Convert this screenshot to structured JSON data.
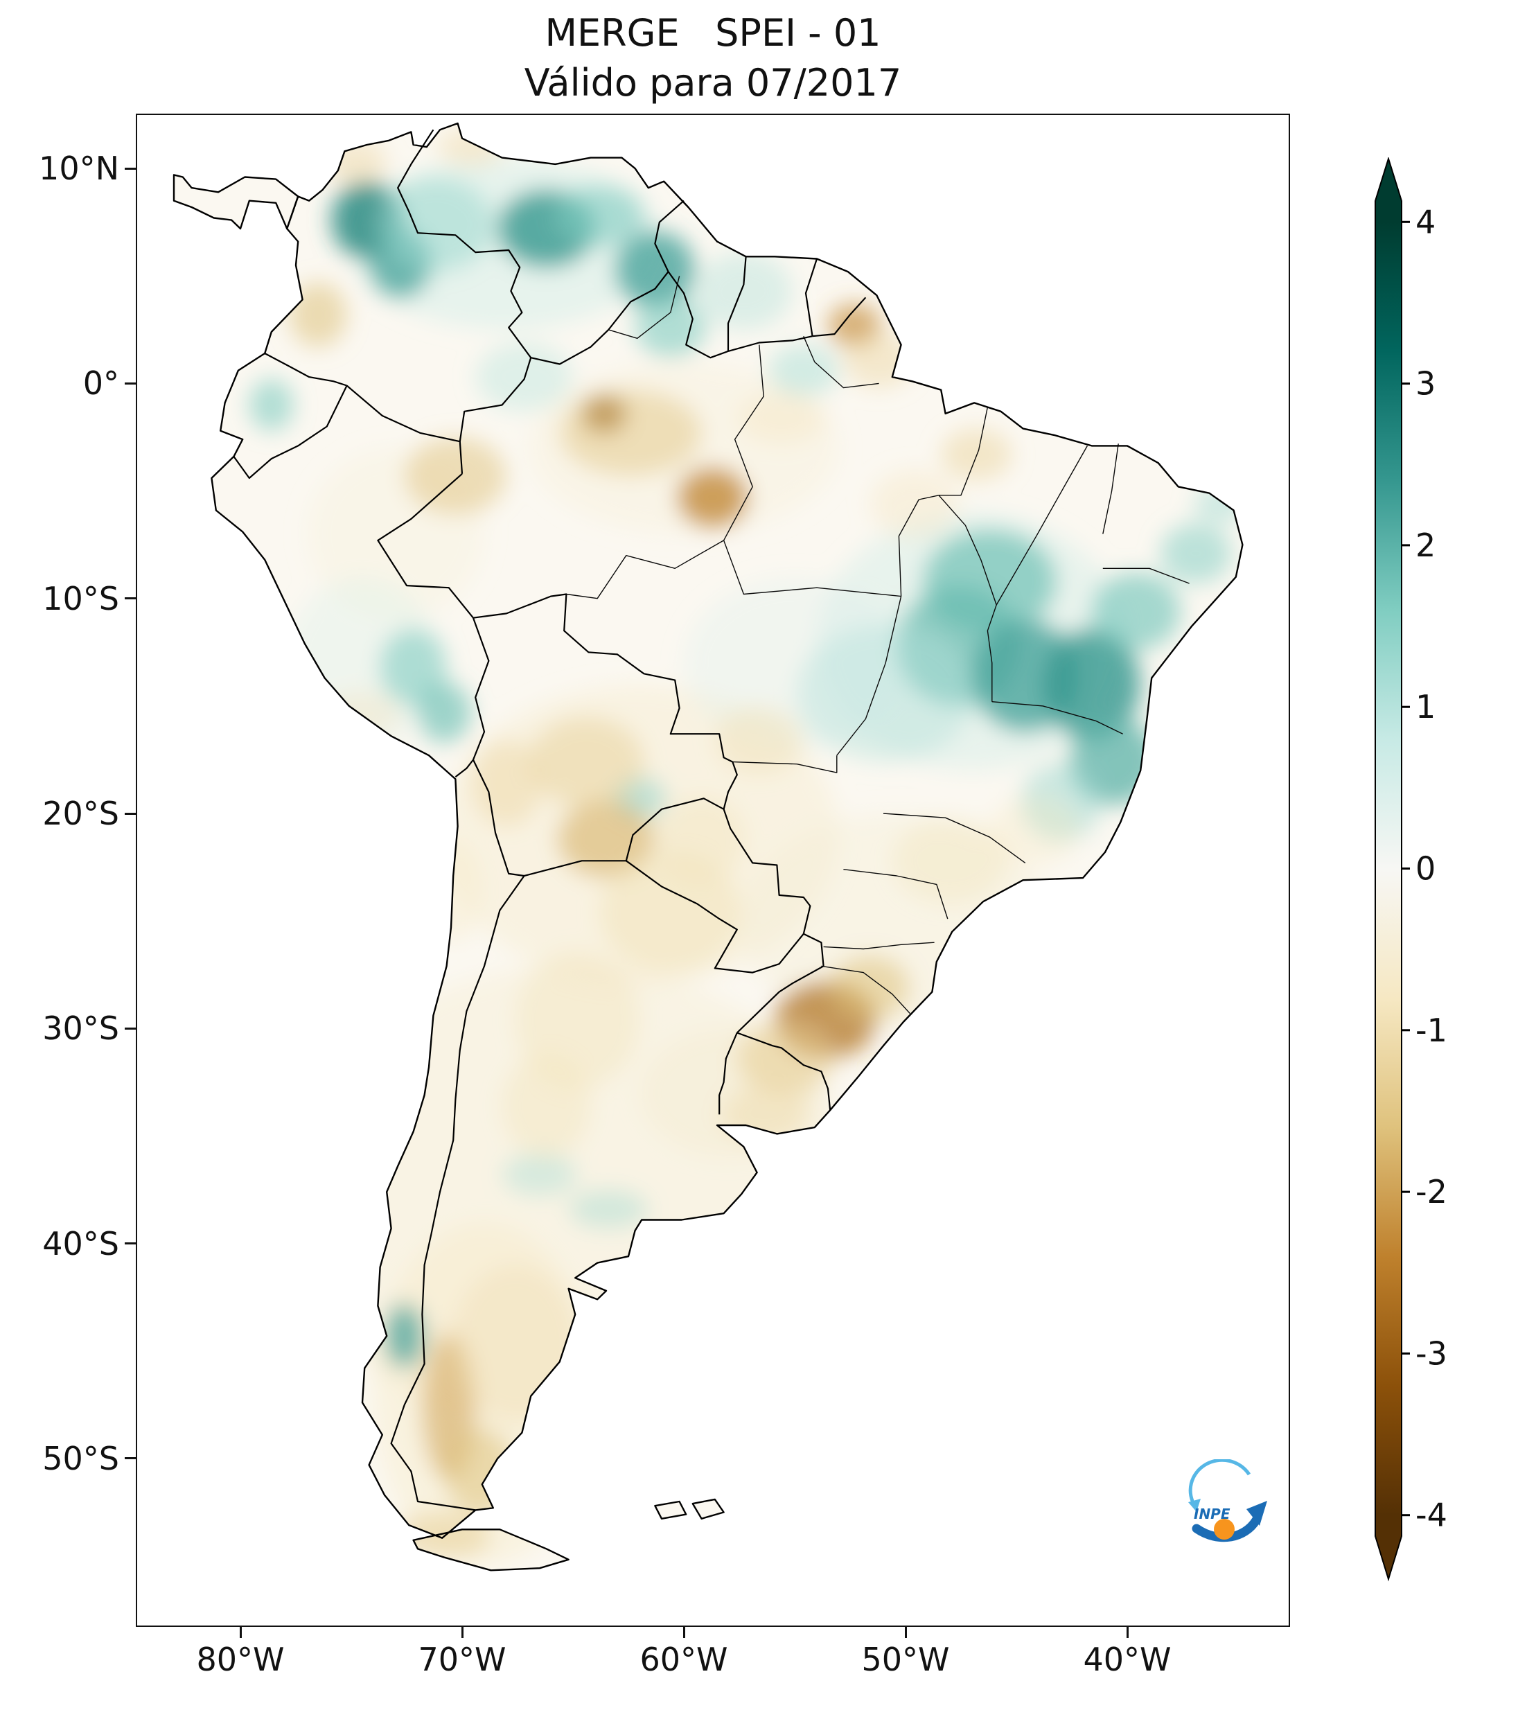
{
  "title": "MERGE   SPEI - 01",
  "subtitle": "Válido para 07/2017",
  "axes": {
    "lat_ticks": [
      {
        "label": "10°N",
        "value": 10
      },
      {
        "label": "0°",
        "value": 0
      },
      {
        "label": "10°S",
        "value": -10
      },
      {
        "label": "20°S",
        "value": -20
      },
      {
        "label": "30°S",
        "value": -30
      },
      {
        "label": "40°S",
        "value": -40
      },
      {
        "label": "50°S",
        "value": -50
      }
    ],
    "lon_ticks": [
      {
        "label": "80°W",
        "value": -80
      },
      {
        "label": "70°W",
        "value": -70
      },
      {
        "label": "60°W",
        "value": -60
      },
      {
        "label": "50°W",
        "value": -50
      },
      {
        "label": "40°W",
        "value": -40
      }
    ]
  },
  "colorbar": {
    "ticks": [
      4,
      3,
      2,
      1,
      0,
      -1,
      -2,
      -3,
      -4
    ],
    "vmin": -4,
    "vmax": 4,
    "extend": "both",
    "stops": [
      {
        "v": -4.0,
        "c": "#543005"
      },
      {
        "v": -3.2,
        "c": "#8c510a"
      },
      {
        "v": -2.4,
        "c": "#bf812d"
      },
      {
        "v": -1.6,
        "c": "#dfc27d"
      },
      {
        "v": -0.8,
        "c": "#f6e8c3"
      },
      {
        "v": 0.0,
        "c": "#f7f7f4"
      },
      {
        "v": 0.8,
        "c": "#c7eae5"
      },
      {
        "v": 1.6,
        "c": "#80cdc1"
      },
      {
        "v": 2.4,
        "c": "#35978f"
      },
      {
        "v": 3.2,
        "c": "#01665e"
      },
      {
        "v": 4.0,
        "c": "#003c30"
      }
    ]
  },
  "logo": {
    "text": "INPE"
  },
  "chart_data": {
    "type": "heatmap",
    "title": "MERGE   SPEI - 01",
    "subtitle": "Válido para 07/2017",
    "variable": "SPEI-01",
    "valid_for": "07/2017",
    "extent": {
      "lon_min": -84.7,
      "lon_max": -32.7,
      "lat_min": -57.8,
      "lat_max": 12.55
    },
    "value_range": [
      -4,
      4
    ],
    "region_format": [
      "lon",
      "lat",
      "rx_deg",
      "ry_deg",
      "spei",
      "opacity"
    ],
    "anomaly_regions": [
      [
        -65.0,
        -38.0,
        13.0,
        11.0,
        -0.5,
        0.45
      ],
      [
        -62.0,
        -21.0,
        9.0,
        7.0,
        -0.6,
        0.45
      ],
      [
        -50.5,
        -25.0,
        7.0,
        5.0,
        -0.5,
        0.4
      ],
      [
        -69.0,
        -47.0,
        5.0,
        8.0,
        -0.7,
        0.45
      ],
      [
        -60.0,
        -3.0,
        7.0,
        4.0,
        -0.5,
        0.35
      ],
      [
        -73.0,
        -7.0,
        4.0,
        4.0,
        -0.5,
        0.3
      ],
      [
        -58.0,
        -33.0,
        4.0,
        3.0,
        -0.6,
        0.4
      ],
      [
        -47.0,
        -12.0,
        7.0,
        6.0,
        0.7,
        0.4
      ],
      [
        -55.0,
        -13.0,
        5.0,
        4.0,
        0.5,
        0.3
      ],
      [
        -68.0,
        6.5,
        7.0,
        4.0,
        0.8,
        0.4
      ],
      [
        -74.5,
        -13.0,
        3.5,
        4.0,
        0.6,
        0.3
      ],
      [
        -74.3,
        7.6,
        1.6,
        1.8,
        2.6,
        0.85
      ],
      [
        -72.8,
        5.6,
        1.4,
        1.6,
        2.2,
        0.8
      ],
      [
        -71.2,
        7.4,
        2.6,
        2.2,
        1.3,
        0.55
      ],
      [
        -66.2,
        7.2,
        2.2,
        1.8,
        2.4,
        0.8
      ],
      [
        -63.8,
        7.8,
        2.0,
        1.4,
        1.6,
        0.6
      ],
      [
        -61.3,
        5.3,
        1.8,
        1.8,
        2.2,
        0.8
      ],
      [
        -60.6,
        2.6,
        1.6,
        1.4,
        1.6,
        0.6
      ],
      [
        -57.3,
        4.3,
        2.2,
        1.8,
        1.0,
        0.45
      ],
      [
        -54.6,
        0.6,
        1.6,
        1.2,
        1.1,
        0.5
      ],
      [
        -67.2,
        0.3,
        2.2,
        1.6,
        1.0,
        0.4
      ],
      [
        -46.2,
        -9.2,
        3.0,
        2.4,
        1.8,
        0.7
      ],
      [
        -47.6,
        -12.2,
        2.8,
        2.8,
        1.9,
        0.7
      ],
      [
        -44.6,
        -13.6,
        2.4,
        2.6,
        2.2,
        0.8
      ],
      [
        -41.6,
        -14.0,
        2.2,
        2.6,
        2.4,
        0.8
      ],
      [
        -39.6,
        -10.6,
        2.0,
        1.8,
        1.7,
        0.65
      ],
      [
        -36.9,
        -7.9,
        1.6,
        1.4,
        1.4,
        0.6
      ],
      [
        -40.6,
        -17.6,
        2.0,
        2.0,
        2.0,
        0.75
      ],
      [
        -43.0,
        -19.5,
        1.8,
        1.8,
        1.3,
        0.5
      ],
      [
        -50.9,
        -14.4,
        4.0,
        3.2,
        1.0,
        0.45
      ],
      [
        -72.2,
        -13.2,
        1.5,
        1.8,
        1.6,
        0.6
      ],
      [
        -70.8,
        -15.3,
        1.2,
        1.4,
        1.8,
        0.65
      ],
      [
        -78.6,
        -1.0,
        1.0,
        1.2,
        1.6,
        0.6
      ],
      [
        -72.6,
        -44.3,
        0.9,
        1.5,
        2.2,
        0.75
      ],
      [
        -66.5,
        -36.8,
        1.7,
        1.0,
        1.1,
        0.45
      ],
      [
        -63.4,
        -38.4,
        1.8,
        0.9,
        1.2,
        0.45
      ],
      [
        -62.0,
        -19.3,
        1.2,
        1.0,
        1.4,
        0.55
      ],
      [
        -35.8,
        -5.6,
        1.2,
        0.9,
        1.2,
        0.5
      ],
      [
        -63.6,
        -1.4,
        1.0,
        0.9,
        -3.2,
        0.85
      ],
      [
        -62.4,
        -2.3,
        3.2,
        2.0,
        -1.4,
        0.55
      ],
      [
        -58.7,
        -5.3,
        1.6,
        1.4,
        -2.4,
        0.75
      ],
      [
        -70.3,
        -4.3,
        2.3,
        1.8,
        -1.5,
        0.55
      ],
      [
        -76.5,
        3.2,
        1.3,
        1.5,
        -1.6,
        0.55
      ],
      [
        -74.8,
        10.3,
        1.4,
        1.0,
        -1.2,
        0.45
      ],
      [
        -69.6,
        11.0,
        1.5,
        0.9,
        -1.1,
        0.45
      ],
      [
        -52.3,
        2.7,
        1.2,
        1.0,
        -2.2,
        0.7
      ],
      [
        -51.2,
        1.1,
        1.6,
        1.3,
        -1.2,
        0.45
      ],
      [
        -46.8,
        -3.3,
        1.6,
        1.2,
        -1.2,
        0.5
      ],
      [
        -55.6,
        -1.6,
        2.0,
        1.2,
        -0.9,
        0.35
      ],
      [
        -49.6,
        -5.6,
        2.0,
        1.6,
        -0.9,
        0.35
      ],
      [
        -64.4,
        -17.6,
        2.6,
        2.1,
        -1.3,
        0.5
      ],
      [
        -63.5,
        -21.2,
        2.2,
        1.8,
        -1.8,
        0.6
      ],
      [
        -68.0,
        -18.6,
        1.6,
        2.0,
        -1.2,
        0.45
      ],
      [
        -60.6,
        -24.6,
        3.2,
        2.8,
        -1.0,
        0.45
      ],
      [
        -59.2,
        -21.2,
        2.0,
        2.0,
        -0.9,
        0.4
      ],
      [
        -56.6,
        -16.6,
        2.0,
        1.6,
        -1.0,
        0.4
      ],
      [
        -64.8,
        -29.6,
        2.8,
        3.2,
        -0.9,
        0.4
      ],
      [
        -66.2,
        -33.6,
        2.0,
        2.4,
        -0.9,
        0.4
      ],
      [
        -53.6,
        -29.6,
        2.3,
        1.8,
        -2.6,
        0.75
      ],
      [
        -55.4,
        -31.4,
        2.2,
        1.7,
        -1.4,
        0.55
      ],
      [
        -51.6,
        -28.1,
        1.8,
        1.5,
        -1.6,
        0.55
      ],
      [
        -56.3,
        -34.0,
        2.0,
        1.3,
        -1.1,
        0.45
      ],
      [
        -48.0,
        -22.2,
        2.6,
        2.0,
        -0.9,
        0.4
      ],
      [
        -44.2,
        -20.8,
        2.0,
        1.6,
        -0.8,
        0.35
      ],
      [
        -70.6,
        -47.6,
        1.2,
        3.4,
        -1.9,
        0.6
      ],
      [
        -69.2,
        -50.6,
        1.6,
        2.0,
        -1.6,
        0.55
      ],
      [
        -70.9,
        -53.6,
        2.2,
        1.1,
        -1.4,
        0.5
      ],
      [
        -67.6,
        -44.6,
        2.8,
        3.6,
        -1.0,
        0.4
      ],
      [
        -74.6,
        -15.4,
        1.8,
        1.1,
        -0.9,
        0.35
      ],
      [
        -70.4,
        -23.6,
        1.3,
        2.4,
        -0.8,
        0.35
      ]
    ]
  }
}
